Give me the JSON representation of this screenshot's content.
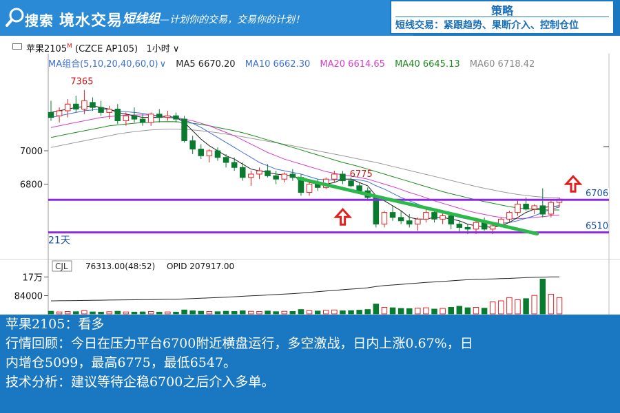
{
  "banner": {
    "brand": "搜索",
    "brand_name": "境水交易",
    "team": "短线组",
    "slogan": "—计划你的交易，交易你的计划！",
    "strategy_title": "策略",
    "strategy_text": "短线交易：紧跟趋势、果断介入、控制仓位"
  },
  "chart_header": {
    "symbol": "苹果2105",
    "symbol_mark": "M",
    "code": "(CZCE AP105)",
    "period": "1小时",
    "ma_group": "MA组合(5,10,20,40,60,0)",
    "ma5": "MA5  6670.20",
    "ma10": "MA10  6662.30",
    "ma20": "MA20  6614.65",
    "ma40": "MA40  6645.13",
    "ma60": "MA60  6718.42"
  },
  "colors": {
    "up": "#e02020",
    "down": "#0a7a2e",
    "ma5": "#222222",
    "ma10": "#3c6fd8",
    "ma20": "#d63cc8",
    "ma40": "#1e8a1e",
    "ma60": "#9a9a9a",
    "support": "#8a2be2",
    "trendline": "#2cb84a",
    "arrow": "#e02020"
  },
  "chart_data": {
    "type": "candlestick",
    "title": "",
    "ylim": [
      6360,
      7500
    ],
    "yticks": [
      7000,
      6800
    ],
    "annotations": {
      "high_label": "7365",
      "recent_high_label": "6775",
      "resistance_label": "6706",
      "support_label": "6510",
      "days_label": "21天"
    },
    "levels": {
      "resistance": 6706,
      "support": 6510
    },
    "candles": [
      [
        7230,
        7300,
        7180,
        7200
      ],
      [
        7210,
        7260,
        7170,
        7240
      ],
      [
        7240,
        7310,
        7200,
        7280
      ],
      [
        7280,
        7330,
        7230,
        7250
      ],
      [
        7250,
        7365,
        7220,
        7300
      ],
      [
        7290,
        7320,
        7240,
        7260
      ],
      [
        7260,
        7300,
        7210,
        7230
      ],
      [
        7230,
        7270,
        7190,
        7250
      ],
      [
        7250,
        7280,
        7160,
        7180
      ],
      [
        7180,
        7230,
        7150,
        7210
      ],
      [
        7210,
        7260,
        7170,
        7190
      ],
      [
        7190,
        7220,
        7150,
        7170
      ],
      [
        7170,
        7230,
        7150,
        7220
      ],
      [
        7220,
        7250,
        7170,
        7200
      ],
      [
        7200,
        7240,
        7180,
        7210
      ],
      [
        7210,
        7230,
        7170,
        7190
      ],
      [
        7190,
        7210,
        7050,
        7060
      ],
      [
        7060,
        7090,
        6980,
        7010
      ],
      [
        7010,
        7040,
        6950,
        6970
      ],
      [
        6970,
        7010,
        6930,
        7000
      ],
      [
        7000,
        7020,
        6940,
        6960
      ],
      [
        6960,
        6980,
        6900,
        6930
      ],
      [
        6930,
        6960,
        6880,
        6900
      ],
      [
        6900,
        6930,
        6820,
        6840
      ],
      [
        6840,
        6880,
        6790,
        6860
      ],
      [
        6860,
        6900,
        6830,
        6880
      ],
      [
        6880,
        6920,
        6840,
        6850
      ],
      [
        6850,
        6880,
        6800,
        6830
      ],
      [
        6830,
        6870,
        6810,
        6860
      ],
      [
        6860,
        6890,
        6820,
        6840
      ],
      [
        6840,
        6860,
        6730,
        6750
      ],
      [
        6750,
        6810,
        6730,
        6800
      ],
      [
        6800,
        6830,
        6760,
        6780
      ],
      [
        6780,
        6840,
        6770,
        6830
      ],
      [
        6830,
        6880,
        6810,
        6860
      ],
      [
        6860,
        6880,
        6800,
        6820
      ],
      [
        6820,
        6840,
        6780,
        6790
      ],
      [
        6790,
        6810,
        6740,
        6760
      ],
      [
        6760,
        6780,
        6700,
        6720
      ],
      [
        6720,
        6730,
        6540,
        6560
      ],
      [
        6560,
        6640,
        6540,
        6630
      ],
      [
        6630,
        6670,
        6580,
        6600
      ],
      [
        6600,
        6640,
        6560,
        6580
      ],
      [
        6580,
        6620,
        6540,
        6560
      ],
      [
        6560,
        6600,
        6520,
        6590
      ],
      [
        6590,
        6650,
        6570,
        6630
      ],
      [
        6630,
        6650,
        6570,
        6590
      ],
      [
        6590,
        6640,
        6560,
        6610
      ],
      [
        6610,
        6630,
        6530,
        6560
      ],
      [
        6560,
        6580,
        6510,
        6540
      ],
      [
        6540,
        6560,
        6500,
        6530
      ],
      [
        6530,
        6580,
        6500,
        6570
      ],
      [
        6570,
        6600,
        6520,
        6530
      ],
      [
        6530,
        6560,
        6500,
        6550
      ],
      [
        6550,
        6600,
        6540,
        6590
      ],
      [
        6590,
        6640,
        6570,
        6630
      ],
      [
        6630,
        6700,
        6610,
        6680
      ],
      [
        6680,
        6720,
        6640,
        6650
      ],
      [
        6650,
        6680,
        6620,
        6670
      ],
      [
        6670,
        6775,
        6600,
        6620
      ],
      [
        6620,
        6700,
        6600,
        6690
      ],
      [
        6690,
        6720,
        6660,
        6710
      ]
    ],
    "ma": {
      "ma5": [
        7230,
        7240,
        7250,
        7260,
        7265,
        7270,
        7260,
        7250,
        7230,
        7220,
        7210,
        7200,
        7200,
        7200,
        7205,
        7200,
        7170,
        7120,
        7070,
        7030,
        7000,
        6970,
        6950,
        6920,
        6890,
        6880,
        6870,
        6860,
        6855,
        6850,
        6830,
        6810,
        6800,
        6800,
        6810,
        6830,
        6830,
        6810,
        6790,
        6730,
        6700,
        6670,
        6640,
        6600,
        6590,
        6590,
        6600,
        6600,
        6590,
        6580,
        6560,
        6550,
        6545,
        6540,
        6550,
        6570,
        6600,
        6630,
        6650,
        6660,
        6665,
        6670
      ],
      "ma10": [
        7200,
        7210,
        7220,
        7230,
        7240,
        7245,
        7250,
        7245,
        7240,
        7235,
        7230,
        7225,
        7215,
        7205,
        7200,
        7195,
        7185,
        7165,
        7140,
        7110,
        7080,
        7050,
        7020,
        6990,
        6960,
        6930,
        6910,
        6890,
        6880,
        6870,
        6860,
        6845,
        6830,
        6825,
        6825,
        6830,
        6830,
        6825,
        6815,
        6790,
        6770,
        6745,
        6720,
        6700,
        6680,
        6660,
        6645,
        6630,
        6615,
        6600,
        6590,
        6580,
        6575,
        6570,
        6565,
        6570,
        6580,
        6595,
        6610,
        6630,
        6650,
        6662
      ],
      "ma20": [
        7140,
        7150,
        7160,
        7170,
        7180,
        7190,
        7200,
        7205,
        7210,
        7215,
        7215,
        7215,
        7215,
        7210,
        7205,
        7200,
        7190,
        7180,
        7165,
        7150,
        7130,
        7110,
        7090,
        7065,
        7040,
        7015,
        6990,
        6970,
        6950,
        6935,
        6920,
        6905,
        6890,
        6875,
        6865,
        6855,
        6848,
        6840,
        6830,
        6815,
        6800,
        6785,
        6768,
        6750,
        6735,
        6718,
        6700,
        6685,
        6670,
        6655,
        6640,
        6628,
        6618,
        6608,
        6600,
        6595,
        6592,
        6595,
        6600,
        6605,
        6610,
        6615
      ],
      "ma40": [
        7080,
        7090,
        7100,
        7110,
        7120,
        7130,
        7140,
        7150,
        7155,
        7160,
        7165,
        7170,
        7172,
        7174,
        7175,
        7174,
        7170,
        7165,
        7158,
        7150,
        7140,
        7130,
        7120,
        7108,
        7095,
        7080,
        7065,
        7050,
        7035,
        7020,
        7005,
        6990,
        6975,
        6960,
        6945,
        6930,
        6918,
        6905,
        6890,
        6875,
        6860,
        6845,
        6830,
        6815,
        6800,
        6785,
        6770,
        6755,
        6742,
        6730,
        6718,
        6706,
        6695,
        6685,
        6675,
        6665,
        6658,
        6652,
        6648,
        6646,
        6645,
        6645
      ],
      "ma60": [
        7020,
        7030,
        7040,
        7050,
        7060,
        7070,
        7080,
        7090,
        7100,
        7108,
        7115,
        7120,
        7125,
        7128,
        7130,
        7130,
        7128,
        7125,
        7120,
        7115,
        7108,
        7100,
        7092,
        7084,
        7075,
        7066,
        7057,
        7048,
        7039,
        7030,
        7020,
        7010,
        7000,
        6990,
        6980,
        6970,
        6960,
        6950,
        6940,
        6930,
        6918,
        6906,
        6894,
        6882,
        6870,
        6858,
        6846,
        6834,
        6822,
        6810,
        6798,
        6786,
        6775,
        6765,
        6755,
        6746,
        6738,
        6732,
        6726,
        6722,
        6720,
        6718
      ]
    },
    "volume": {
      "oi_label": "CJL",
      "volume_text": "76313.00(48:52)",
      "opid_text": "OPID 207917.00",
      "yticks": [
        "17万",
        "84000"
      ],
      "ylim": [
        0,
        190000
      ],
      "values": [
        12000,
        9000,
        11000,
        10000,
        15000,
        9000,
        8000,
        10000,
        12000,
        9000,
        8000,
        9000,
        11000,
        8000,
        9000,
        8000,
        18000,
        14000,
        12000,
        11000,
        10000,
        12000,
        11000,
        14000,
        12000,
        11000,
        13000,
        10000,
        12000,
        11000,
        20000,
        15000,
        13000,
        16000,
        18000,
        14000,
        15000,
        17000,
        20000,
        45000,
        30000,
        28000,
        25000,
        24000,
        26000,
        28000,
        22000,
        25000,
        30000,
        35000,
        28000,
        30000,
        26000,
        55000,
        60000,
        75000,
        65000,
        70000,
        85000,
        160000,
        90000,
        75000
      ],
      "open_interest": [
        60000,
        60500,
        61000,
        61500,
        62000,
        62500,
        63000,
        63500,
        64000,
        64500,
        65000,
        65500,
        66000,
        66500,
        67000,
        67500,
        69000,
        70500,
        72000,
        73500,
        75000,
        77000,
        79000,
        81000,
        83000,
        85000,
        87000,
        89000,
        91000,
        93000,
        96000,
        99000,
        102000,
        105000,
        108000,
        111000,
        114000,
        117000,
        120000,
        126000,
        130000,
        133000,
        136000,
        139000,
        142000,
        145000,
        147000,
        149000,
        152000,
        155000,
        157000,
        159000,
        160000,
        161000,
        162000,
        163000,
        165000,
        167000,
        168000,
        169000,
        170000,
        170000
      ]
    }
  },
  "info": {
    "line1": "苹果2105：看多",
    "line2": "行情回顾：今日在压力平台6700附近横盘运行，多空激战，日内上涨0.67%，日",
    "line3": "内增仓5099，最高6775，最低6547。",
    "line4": "技术分析：建议等待企稳6700之后介入多单。"
  }
}
